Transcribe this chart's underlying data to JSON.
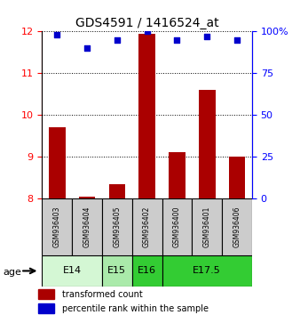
{
  "title": "GDS4591 / 1416524_at",
  "samples": [
    "GSM936403",
    "GSM936404",
    "GSM936405",
    "GSM936402",
    "GSM936400",
    "GSM936401",
    "GSM936406"
  ],
  "bar_values": [
    9.7,
    8.05,
    8.35,
    11.95,
    9.1,
    10.6,
    9.0
  ],
  "dot_percentiles": [
    98,
    90,
    95,
    100,
    95,
    97,
    95
  ],
  "bar_color": "#aa0000",
  "dot_color": "#0000cc",
  "ylim_left": [
    8,
    12
  ],
  "ylim_right": [
    0,
    100
  ],
  "yticks_left": [
    8,
    9,
    10,
    11,
    12
  ],
  "yticks_right": [
    0,
    25,
    50,
    75,
    100
  ],
  "ytick_labels_right": [
    "0",
    "25",
    "50",
    "75",
    "100%"
  ],
  "groups": [
    {
      "label": "E14",
      "span": [
        0,
        2
      ],
      "color": "#d4f7d4"
    },
    {
      "label": "E15",
      "span": [
        2,
        3
      ],
      "color": "#aaeaaa"
    },
    {
      "label": "E16",
      "span": [
        3,
        4
      ],
      "color": "#33cc33"
    },
    {
      "label": "E17.5",
      "span": [
        4,
        7
      ],
      "color": "#33cc33"
    }
  ],
  "age_label": "age",
  "legend_bar_label": "transformed count",
  "legend_dot_label": "percentile rank within the sample",
  "sample_box_color": "#cccccc"
}
